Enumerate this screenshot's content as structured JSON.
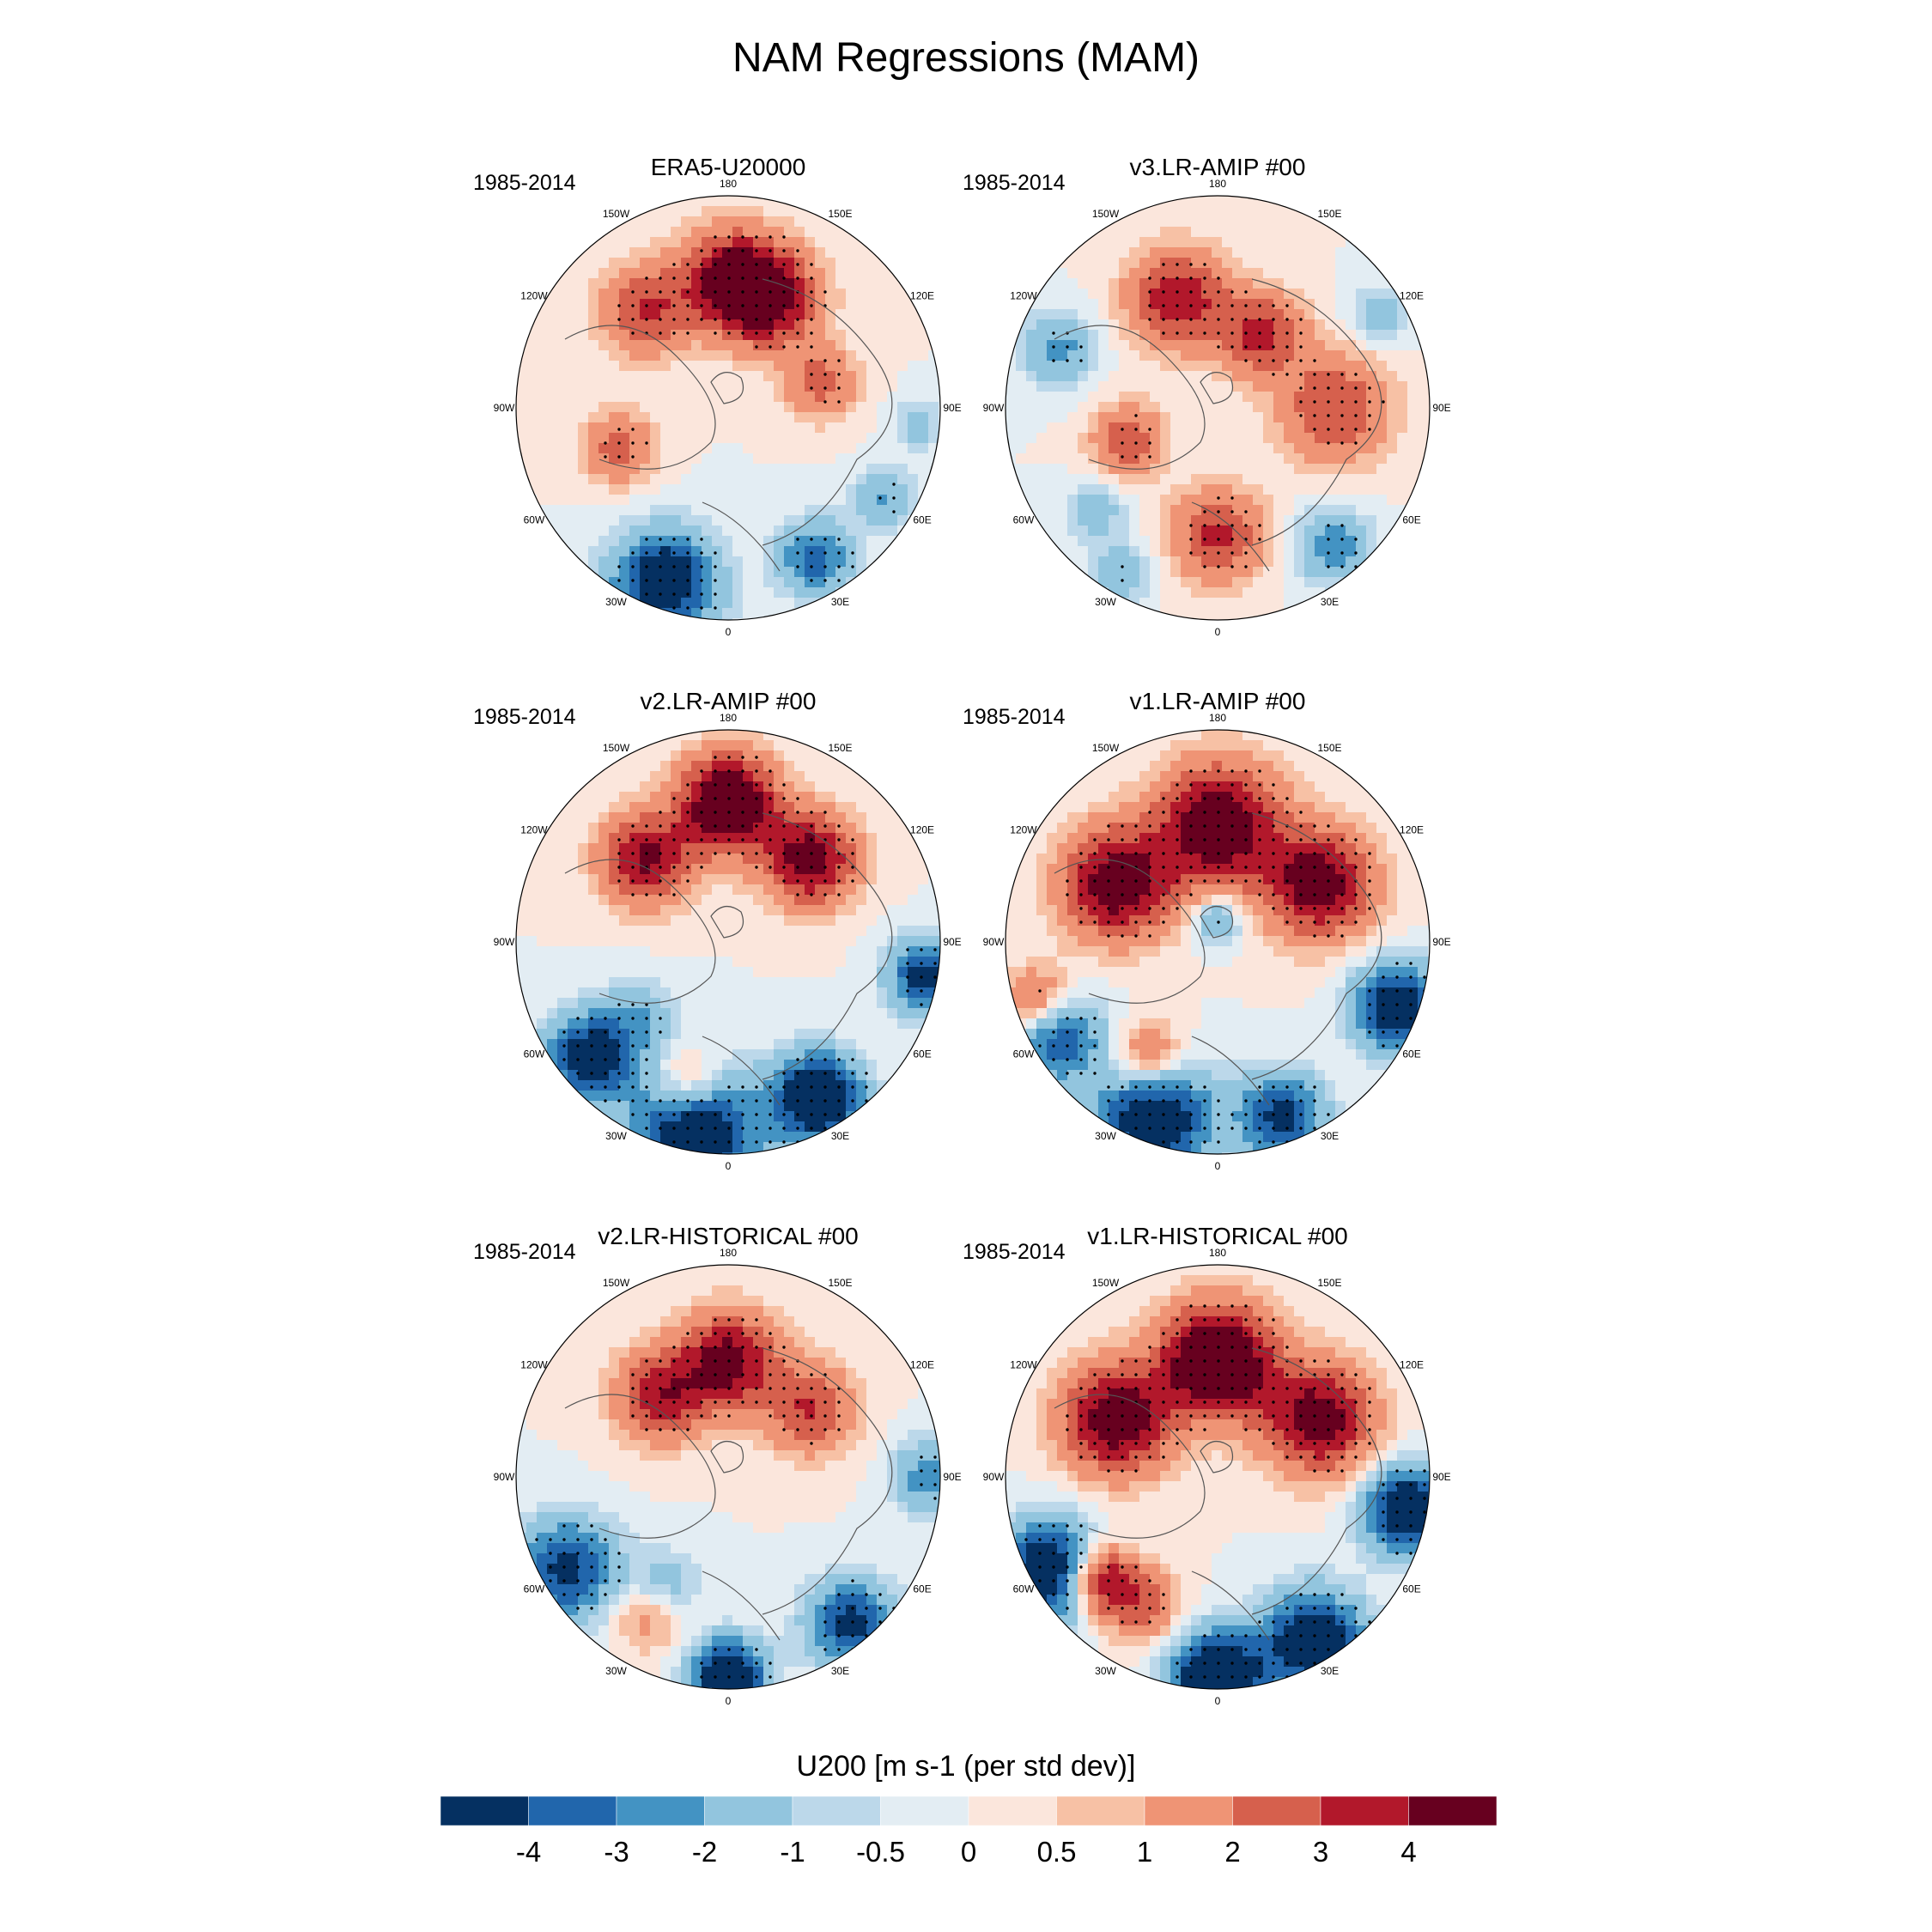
{
  "figure": {
    "title": "NAM Regressions (MAM)",
    "period": "1985-2014",
    "colorbar_title": "U200 [m s-1 (per std dev)]"
  },
  "lon_labels": [
    "180",
    "150E",
    "120E",
    "90E",
    "60E",
    "30E",
    "0",
    "30W",
    "60W",
    "90W",
    "120W",
    "150W"
  ],
  "panels": [
    {
      "title": "ERA5-U20000",
      "pattern": "era5"
    },
    {
      "title": "v3.LR-AMIP  #00",
      "pattern": "v3amip"
    },
    {
      "title": "v2.LR-AMIP  #00",
      "pattern": "v2amip"
    },
    {
      "title": "v1.LR-AMIP  #00",
      "pattern": "v1amip"
    },
    {
      "title": "v2.LR-HISTORICAL  #00",
      "pattern": "v2hist"
    },
    {
      "title": "v1.LR-HISTORICAL  #00",
      "pattern": "v1hist"
    }
  ],
  "colorbar": {
    "colors": [
      "#053061",
      "#2166ac",
      "#4393c3",
      "#92c5de",
      "#bcd8ea",
      "#e3edf3",
      "#fbe6dc",
      "#f7c1a5",
      "#ef9475",
      "#d6604d",
      "#b2182b",
      "#67001f"
    ],
    "labels": [
      "-4",
      "-3",
      "-2",
      "-1",
      "-0.5",
      "0",
      "0.5",
      "1",
      "2",
      "3",
      "4"
    ],
    "levels": [
      -4,
      -3,
      -2,
      -1,
      -0.5,
      0,
      0.5,
      1,
      2,
      3,
      4
    ]
  }
}
